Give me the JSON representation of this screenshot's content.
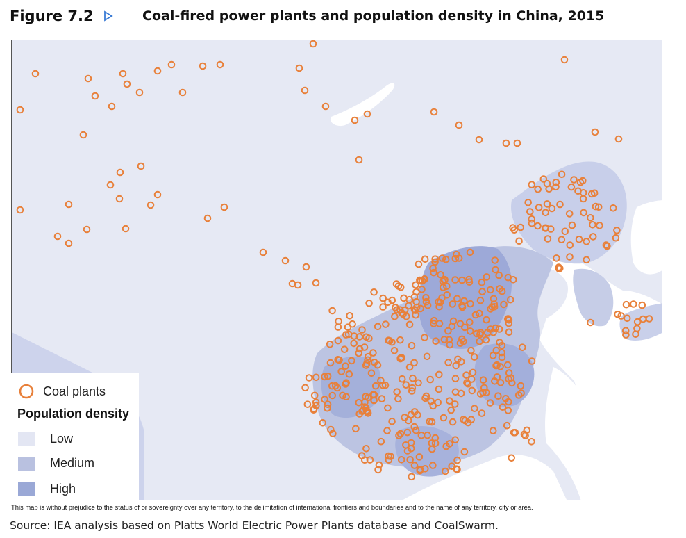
{
  "header": {
    "figure_label": "Figure 7.2",
    "title": "Coal-fired power plants and population density in China, 2015"
  },
  "legend": {
    "coal_plants_label": "Coal plants",
    "heading": "Population density",
    "items": [
      {
        "label": "Low",
        "color": "#e3e6f3"
      },
      {
        "label": "Medium",
        "color": "#b9c1e0"
      },
      {
        "label": "High",
        "color": "#9aa8d6"
      }
    ],
    "marker_color": "#e8803a"
  },
  "disclaimer": "This map is without prejudice to the status of or sovereignty over any territory, to the delimitation of international frontiers and boundaries and to the name of any territory, city or area.",
  "source": "Source: IEA analysis based on Platts World Electric Power Plants database and CoalSwarm.",
  "colors": {
    "land_low": "#e3e6f3",
    "land_medium": "#b9c1e0",
    "land_high": "#9aa8d6",
    "sea": "#ffffff",
    "marker": "#e8803a",
    "arrow": "#3a7bd5"
  }
}
